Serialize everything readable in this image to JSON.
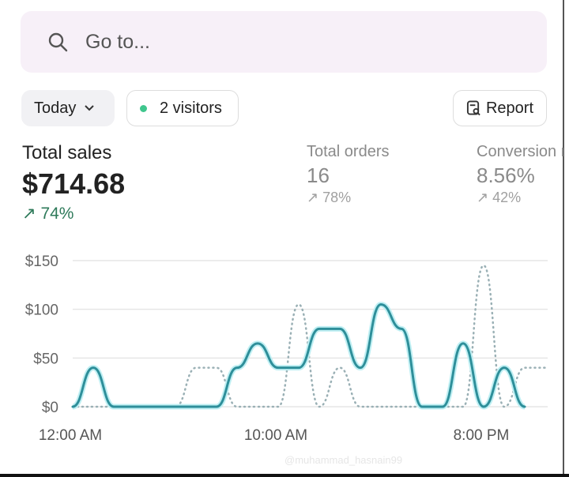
{
  "search": {
    "placeholder": "Go to...",
    "icon": "search-icon"
  },
  "filters": {
    "date_label": "Today",
    "visitors_label": "2 visitors",
    "report_label": "Report",
    "accent": "#3fc68d"
  },
  "metrics": [
    {
      "label": "Total sales",
      "value": "$714.68",
      "change": "74%"
    },
    {
      "label": "Total orders",
      "value": "16",
      "change": "78%"
    },
    {
      "label": "Conversion r",
      "value": "8.56%",
      "change": "42%"
    }
  ],
  "watermark": "@muhammad_hasnain99",
  "chart_data": {
    "type": "line",
    "title": "",
    "xlabel": "",
    "ylabel": "",
    "x_ticks": [
      "12:00 AM",
      "10:00 AM",
      "8:00 PM"
    ],
    "y_ticks": [
      "$0",
      "$50",
      "$100",
      "$150"
    ],
    "ylim": [
      0,
      150
    ],
    "grid": true,
    "x_hours": [
      0,
      1,
      2,
      3,
      4,
      5,
      6,
      7,
      8,
      9,
      10,
      11,
      12,
      13,
      14,
      15,
      16,
      17,
      18,
      19,
      20,
      21,
      22,
      23
    ],
    "series": [
      {
        "style": "solid",
        "color": "#2e8f9a",
        "values": [
          0,
          40,
          0,
          0,
          0,
          0,
          0,
          0,
          40,
          65,
          40,
          40,
          80,
          80,
          40,
          105,
          80,
          0,
          0,
          65,
          0,
          40,
          0,
          null
        ]
      },
      {
        "style": "dotted",
        "color": "#9ab0b5",
        "values": [
          0,
          0,
          0,
          0,
          0,
          0,
          40,
          40,
          0,
          0,
          0,
          105,
          0,
          40,
          0,
          0,
          0,
          0,
          0,
          0,
          145,
          0,
          40,
          40
        ]
      }
    ]
  }
}
